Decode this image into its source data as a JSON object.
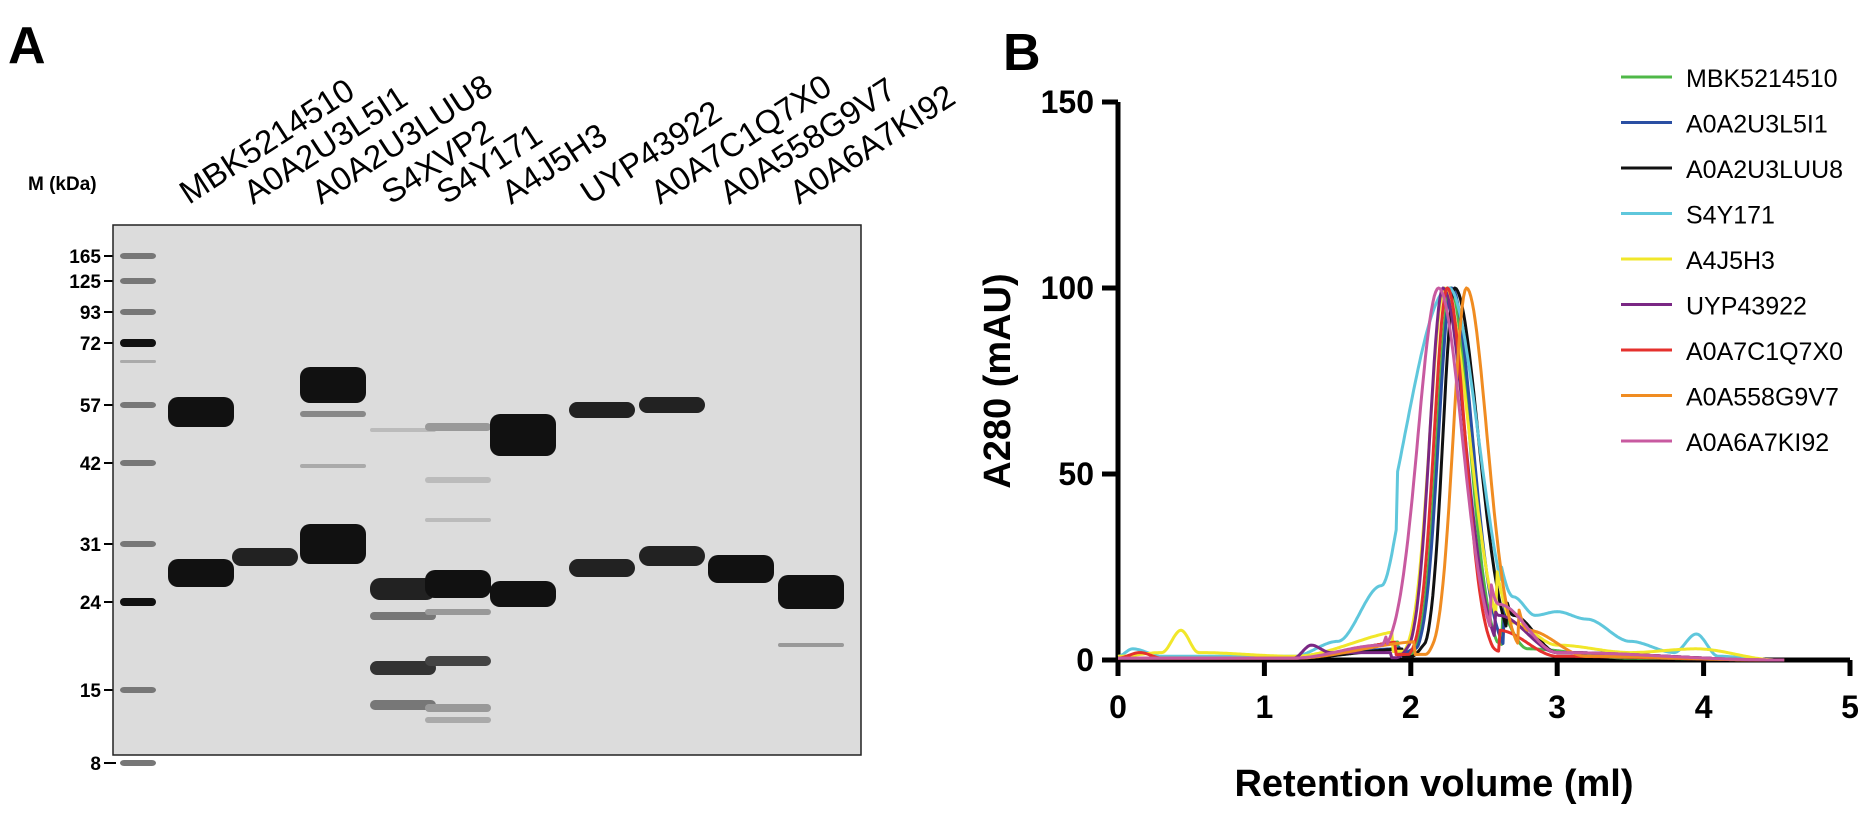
{
  "panel_a": {
    "letter": "A",
    "marker_header": "M (kDa)",
    "marker_sizes": [
      "165",
      "125",
      "93",
      "72",
      "57",
      "42",
      "31",
      "24",
      "15",
      "8"
    ],
    "lanes": [
      "MBK5214510",
      "A0A2U3L5I1",
      "A0A2U3LUU8",
      "S4XVP2",
      "S4Y171",
      "A4J5H3",
      "UYP43922",
      "A0A7C1Q7X0",
      "A0A558G9V7",
      "A0A6A7KI92"
    ]
  },
  "panel_b": {
    "letter": "B"
  },
  "chart_data": {
    "type": "line",
    "title": "",
    "xlabel": "Retention volume (ml)",
    "ylabel": "A280 (mAU)",
    "xlim": [
      0,
      5
    ],
    "ylim": [
      0,
      150
    ],
    "xticks": [
      "0",
      "1",
      "2",
      "3",
      "4",
      "5"
    ],
    "yticks": [
      "0",
      "50",
      "100",
      "150"
    ],
    "grid": false,
    "legend_position": "top-right",
    "series": [
      {
        "name": "MBK5214510",
        "color": "#4fb848",
        "peak": 2.27,
        "wl": 0.09,
        "wr": 0.13,
        "points": [
          [
            0,
            0.5
          ],
          [
            1.2,
            0.5
          ],
          [
            2.0,
            5
          ],
          [
            2.1,
            20
          ],
          [
            2.2,
            75
          ],
          [
            2.27,
            100
          ],
          [
            2.35,
            70
          ],
          [
            2.5,
            20
          ],
          [
            2.8,
            3
          ],
          [
            3.5,
            0.5
          ],
          [
            4.5,
            0
          ]
        ]
      },
      {
        "name": "A0A2U3L5I1",
        "color": "#2a4fa3",
        "peak": 2.28,
        "wl": 0.09,
        "wr": 0.14,
        "points": [
          [
            0,
            0.5
          ],
          [
            1.2,
            0.5
          ],
          [
            1.9,
            3
          ],
          [
            2.05,
            11
          ],
          [
            2.15,
            25
          ],
          [
            2.28,
            100
          ],
          [
            2.4,
            60
          ],
          [
            2.6,
            15
          ],
          [
            3.0,
            2
          ],
          [
            4.5,
            0
          ]
        ]
      },
      {
        "name": "A0A2U3LUU8",
        "color": "#111111",
        "peak": 2.3,
        "wl": 0.08,
        "wr": 0.16,
        "points": [
          [
            0,
            0.5
          ],
          [
            1.2,
            0.5
          ],
          [
            2.0,
            3
          ],
          [
            2.15,
            20
          ],
          [
            2.3,
            100
          ],
          [
            2.45,
            60
          ],
          [
            2.7,
            12
          ],
          [
            3.0,
            2
          ],
          [
            4.5,
            0
          ]
        ]
      },
      {
        "name": "S4Y171",
        "color": "#5fc7dc",
        "peak": 2.26,
        "wl": 0.3,
        "wr": 0.2,
        "points": [
          [
            0,
            1
          ],
          [
            0.1,
            3
          ],
          [
            0.3,
            1
          ],
          [
            1.2,
            1
          ],
          [
            1.5,
            5
          ],
          [
            1.8,
            20
          ],
          [
            2.0,
            50
          ],
          [
            2.26,
            100
          ],
          [
            2.45,
            50
          ],
          [
            2.7,
            17
          ],
          [
            2.85,
            12
          ],
          [
            3.0,
            13
          ],
          [
            3.2,
            11
          ],
          [
            3.5,
            5
          ],
          [
            3.8,
            2
          ],
          [
            3.95,
            7
          ],
          [
            4.1,
            1
          ],
          [
            4.5,
            0
          ]
        ]
      },
      {
        "name": "A4J5H3",
        "color": "#f1e72a",
        "peak": 2.23,
        "wl": 0.1,
        "wr": 0.17,
        "points": [
          [
            0,
            1
          ],
          [
            0.3,
            2
          ],
          [
            0.43,
            8
          ],
          [
            0.55,
            2
          ],
          [
            1.2,
            1
          ],
          [
            2.0,
            8
          ],
          [
            2.23,
            100
          ],
          [
            2.4,
            55
          ],
          [
            2.7,
            10
          ],
          [
            3.0,
            4
          ],
          [
            3.5,
            2
          ],
          [
            3.95,
            3
          ],
          [
            4.5,
            0
          ]
        ]
      },
      {
        "name": "UYP43922",
        "color": "#7a2784",
        "peak": 2.22,
        "wl": 0.09,
        "wr": 0.15,
        "points": [
          [
            0,
            0.5
          ],
          [
            1.2,
            0.5
          ],
          [
            1.32,
            4
          ],
          [
            1.45,
            2
          ],
          [
            1.9,
            2
          ],
          [
            2.1,
            30
          ],
          [
            2.22,
            100
          ],
          [
            2.35,
            60
          ],
          [
            2.6,
            12
          ],
          [
            3.0,
            2
          ],
          [
            4.5,
            0
          ]
        ]
      },
      {
        "name": "A0A7C1Q7X0",
        "color": "#e5312d",
        "peak": 2.25,
        "wl": 0.09,
        "wr": 0.12,
        "points": [
          [
            0,
            0.5
          ],
          [
            0.15,
            2
          ],
          [
            0.3,
            0.5
          ],
          [
            1.2,
            0.5
          ],
          [
            2.0,
            5
          ],
          [
            2.25,
            100
          ],
          [
            2.4,
            45
          ],
          [
            2.6,
            8
          ],
          [
            3.0,
            1
          ],
          [
            4.5,
            0
          ]
        ]
      },
      {
        "name": "A0A558G9V7",
        "color": "#f08c21",
        "peak": 2.38,
        "wl": 0.09,
        "wr": 0.14,
        "points": [
          [
            0,
            0.5
          ],
          [
            1.2,
            0.5
          ],
          [
            2.1,
            5
          ],
          [
            2.25,
            40
          ],
          [
            2.38,
            100
          ],
          [
            2.5,
            60
          ],
          [
            2.8,
            8
          ],
          [
            3.2,
            1
          ],
          [
            4.5,
            0
          ]
        ]
      },
      {
        "name": "A0A6A7KI92",
        "color": "#c85aa0",
        "peak": 2.19,
        "wl": 0.14,
        "wr": 0.16,
        "points": [
          [
            0,
            0.5
          ],
          [
            1.2,
            0.5
          ],
          [
            1.8,
            4
          ],
          [
            2.0,
            40
          ],
          [
            2.19,
            100
          ],
          [
            2.35,
            65
          ],
          [
            2.6,
            15
          ],
          [
            3.0,
            2
          ],
          [
            4.5,
            0
          ]
        ]
      }
    ]
  }
}
